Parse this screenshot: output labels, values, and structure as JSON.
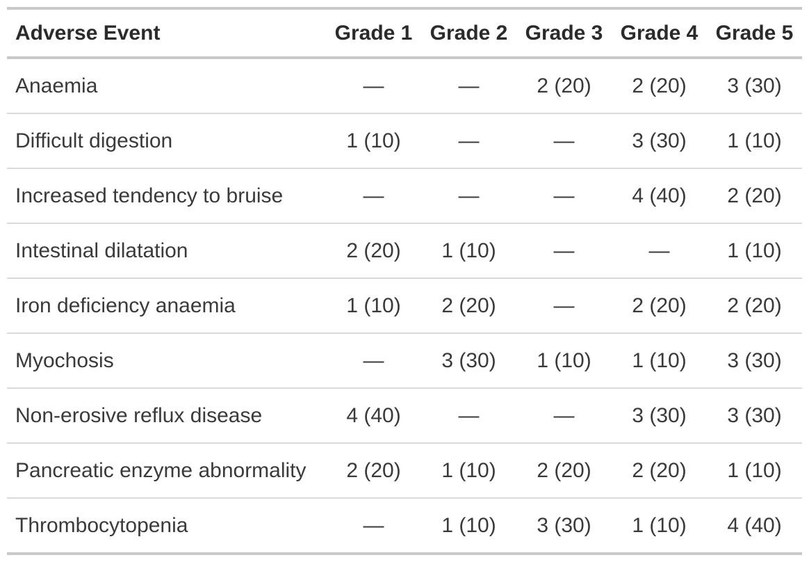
{
  "table": {
    "columns": [
      "Adverse Event",
      "Grade 1",
      "Grade 2",
      "Grade 3",
      "Grade 4",
      "Grade 5"
    ],
    "rows": [
      {
        "event": "Anaemia",
        "values": [
          "—",
          "—",
          "2 (20)",
          "2 (20)",
          "3 (30)"
        ]
      },
      {
        "event": "Difficult digestion",
        "values": [
          "1 (10)",
          "—",
          "—",
          "3 (30)",
          "1 (10)"
        ]
      },
      {
        "event": "Increased tendency to bruise",
        "values": [
          "—",
          "—",
          "—",
          "4 (40)",
          "2 (20)"
        ]
      },
      {
        "event": "Intestinal dilatation",
        "values": [
          "2 (20)",
          "1 (10)",
          "—",
          "—",
          "1 (10)"
        ]
      },
      {
        "event": "Iron deficiency anaemia",
        "values": [
          "1 (10)",
          "2 (20)",
          "—",
          "2 (20)",
          "2 (20)"
        ]
      },
      {
        "event": "Myochosis",
        "values": [
          "—",
          "3 (30)",
          "1 (10)",
          "1 (10)",
          "3 (30)"
        ]
      },
      {
        "event": "Non-erosive reflux disease",
        "values": [
          "4 (40)",
          "—",
          "—",
          "3 (30)",
          "3 (30)"
        ]
      },
      {
        "event": "Pancreatic enzyme abnormality",
        "values": [
          "2 (20)",
          "1 (10)",
          "2 (20)",
          "2 (20)",
          "1 (10)"
        ]
      },
      {
        "event": "Thrombocytopenia",
        "values": [
          "—",
          "1 (10)",
          "3 (30)",
          "1 (10)",
          "4 (40)"
        ]
      }
    ]
  },
  "colors": {
    "heavy_rule": "#c9c9c9",
    "light_rule": "#dadada",
    "header_text": "#2b2b2b",
    "body_text": "#3a3a3a",
    "background": "#ffffff"
  }
}
